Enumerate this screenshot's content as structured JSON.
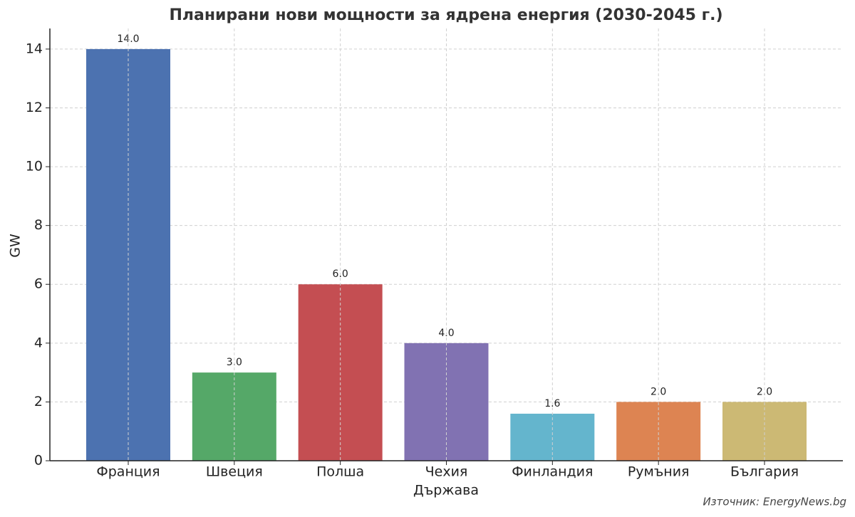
{
  "chart_data": {
    "type": "bar",
    "title": "Планирани нови мощности за ядрена енергия (2030-2045 г.)",
    "x_label": "Държава",
    "y_label": "GW",
    "categories": [
      "Франция",
      "Швеция",
      "Полша",
      "Чехия",
      "Финландия",
      "Румъния",
      "България"
    ],
    "values": [
      14,
      3,
      6,
      4,
      1.6,
      2,
      2
    ],
    "value_labels": [
      "14.0",
      "3.0",
      "6.0",
      "4.0",
      "1.6",
      "2.0",
      "2.0"
    ],
    "colors": [
      "#4c72b0",
      "#55a868",
      "#c44e52",
      "#8172b2",
      "#64b5cd",
      "#dd8452",
      "#ccb974"
    ],
    "ylim": [
      0,
      14.7
    ],
    "yticks": [
      0,
      2,
      4,
      6,
      8,
      10,
      12,
      14
    ],
    "grid": true,
    "annotation": "Източник: EnergyNews.bg"
  }
}
